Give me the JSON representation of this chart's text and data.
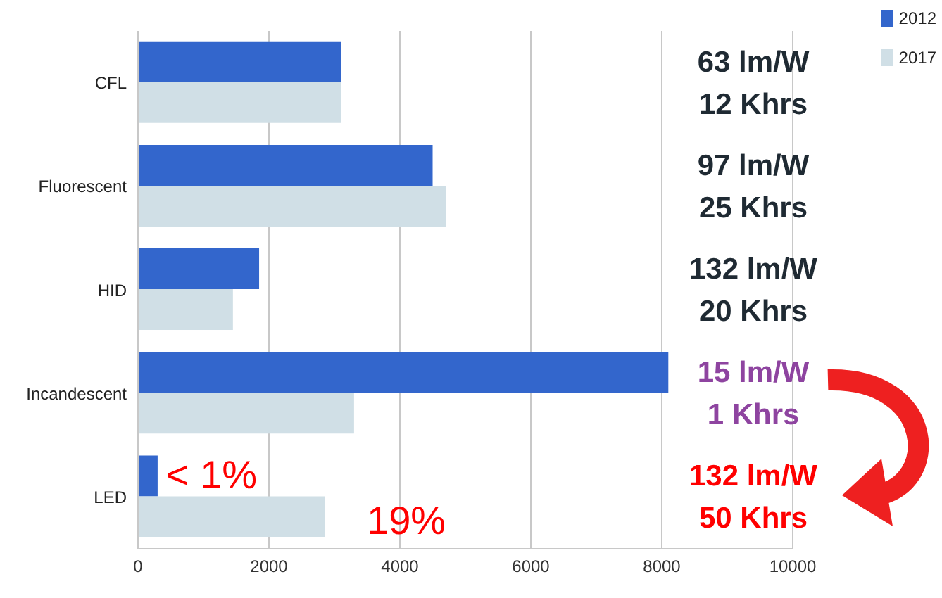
{
  "chart_data": {
    "type": "bar",
    "orientation": "horizontal",
    "categories": [
      "CFL",
      "Fluorescent",
      "HID",
      "Incandescent",
      "LED"
    ],
    "series": [
      {
        "name": "2012",
        "color": "#3366cc",
        "values": [
          3100,
          4500,
          1850,
          8100,
          300
        ]
      },
      {
        "name": "2017",
        "color": "#d0dfe6",
        "values": [
          3100,
          4700,
          1450,
          3300,
          2850
        ]
      }
    ],
    "xlim": [
      0,
      10000
    ],
    "xticks": [
      0,
      2000,
      4000,
      6000,
      8000,
      10000
    ],
    "grid": "x",
    "legend": "top right",
    "annotations": [
      {
        "text": "< 1%",
        "x": 300,
        "y": "LED"
      },
      {
        "text": "19%",
        "x": 2850,
        "y": "LED"
      },
      "63 lm/W",
      "12 Khrs",
      "97 lm/W",
      "25 Khrs",
      "132 lm/W",
      "20 Khrs",
      "15 lm/W",
      "1 Khrs",
      "132 lm/W",
      "50 Khrs"
    ]
  }
}
